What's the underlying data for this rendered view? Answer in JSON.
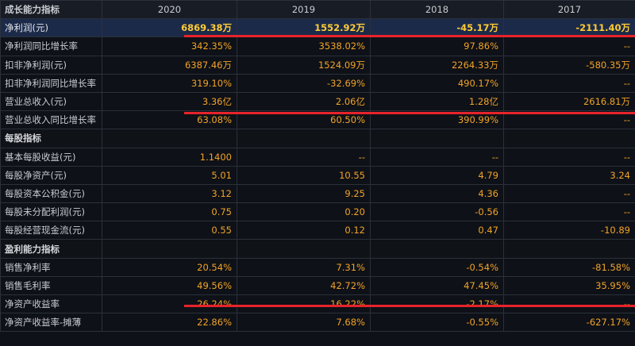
{
  "header": {
    "title": "成长能力指标",
    "years": [
      "2020",
      "2019",
      "2018",
      "2017"
    ]
  },
  "rows": [
    {
      "label": "净利润(元)",
      "values": [
        "6869.38万",
        "1552.92万",
        "-45.17万",
        "-2111.40万"
      ]
    },
    {
      "label": "净利润同比增长率",
      "values": [
        "342.35%",
        "3538.02%",
        "97.86%",
        "--"
      ]
    },
    {
      "label": "扣非净利润(元)",
      "values": [
        "6387.46万",
        "1524.09万",
        "2264.33万",
        "-580.35万"
      ]
    },
    {
      "label": "扣非净利润同比增长率",
      "values": [
        "319.10%",
        "-32.69%",
        "490.17%",
        "--"
      ]
    },
    {
      "label": "营业总收入(元)",
      "values": [
        "3.36亿",
        "2.06亿",
        "1.28亿",
        "2616.81万"
      ]
    },
    {
      "label": "营业总收入同比增长率",
      "values": [
        "63.08%",
        "60.50%",
        "390.99%",
        "--"
      ]
    },
    {
      "label": "每股指标",
      "values": [
        "",
        "",
        "",
        ""
      ]
    },
    {
      "label": "基本每股收益(元)",
      "values": [
        "1.1400",
        "--",
        "--",
        "--"
      ]
    },
    {
      "label": "每股净资产(元)",
      "values": [
        "5.01",
        "10.55",
        "4.79",
        "3.24"
      ]
    },
    {
      "label": "每股资本公积金(元)",
      "values": [
        "3.12",
        "9.25",
        "4.36",
        "--"
      ]
    },
    {
      "label": "每股未分配利润(元)",
      "values": [
        "0.75",
        "0.20",
        "-0.56",
        "--"
      ]
    },
    {
      "label": "每股经营现金流(元)",
      "values": [
        "0.55",
        "0.12",
        "0.47",
        "-10.89"
      ]
    },
    {
      "label": "盈利能力指标",
      "values": [
        "",
        "",
        "",
        ""
      ]
    },
    {
      "label": "销售净利率",
      "values": [
        "20.54%",
        "7.31%",
        "-0.54%",
        "-81.58%"
      ]
    },
    {
      "label": "销售毛利率",
      "values": [
        "49.56%",
        "42.72%",
        "47.45%",
        "35.95%"
      ]
    },
    {
      "label": "净资产收益率",
      "values": [
        "26.24%",
        "16.22%",
        "-2.17%",
        "--"
      ]
    },
    {
      "label": "净资产收益率-摊薄",
      "values": [
        "22.86%",
        "7.68%",
        "-0.55%",
        "-627.17%"
      ]
    }
  ],
  "colors": {
    "background": "#0e1117",
    "value_text": "#f2a328",
    "highlight_row": "#1c2a4a",
    "annotation_line": "#e8232a"
  }
}
